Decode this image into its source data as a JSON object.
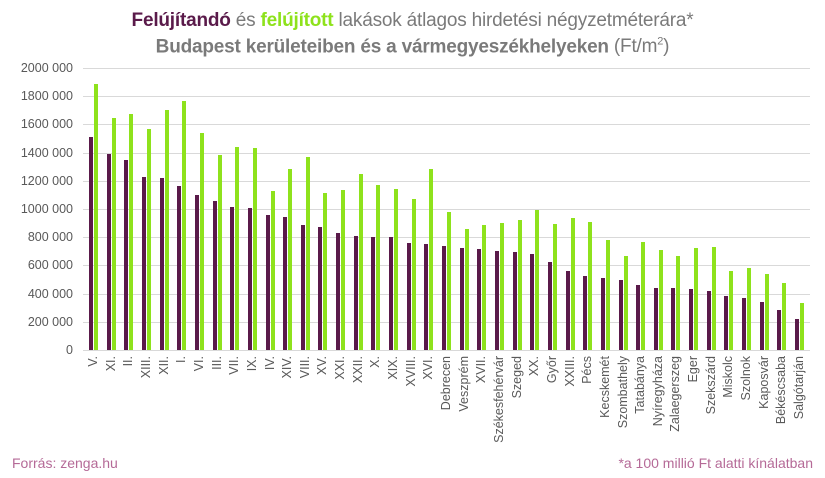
{
  "title": {
    "line1_part1": "Felújítandó",
    "line1_part2": " és ",
    "line1_part3": "felújított",
    "line1_part4": " lakások átlagos hirdetési négyzetméterára*",
    "line2_part1": "Budapest kerületeiben és a vármegyeszékhelyeken ",
    "line2_unit": "(Ft/m",
    "line2_unit_sup": "2",
    "line2_unit_end": ")"
  },
  "footer": {
    "source": "Forrás: zenga.hu",
    "note": "*a 100 millió Ft alatti kínálatban"
  },
  "colors": {
    "felujitando": "#5a1a4a",
    "felujitott": "#8ee21c",
    "grid": "#d9d9d9",
    "footer": "#b56a97"
  },
  "chart_data": {
    "type": "bar",
    "title": "Felújítandó és felújított lakások átlagos hirdetési négyzetméterára* Budapest kerületeiben és a vármegyeszékhelyeken (Ft/m2)",
    "xlabel": "",
    "ylabel": "",
    "ylim": [
      0,
      2000000
    ],
    "yticks": [
      "0",
      "200 000",
      "400 000",
      "600 000",
      "800 000",
      "1000 000",
      "1200 000",
      "1400 000",
      "1600 000",
      "1800 000",
      "2000 000"
    ],
    "grid": true,
    "legend": "in title (colored words)",
    "categories": [
      "V.",
      "XI.",
      "II.",
      "XIII.",
      "XII.",
      "I.",
      "VI.",
      "III.",
      "VII.",
      "IX.",
      "IV.",
      "XIV.",
      "VIII.",
      "XV.",
      "XXI.",
      "XXII.",
      "X.",
      "XIX.",
      "XVIII.",
      "XVI.",
      "Debrecen",
      "Veszprém",
      "XVII.",
      "Székesfehérvár",
      "Szeged",
      "XX.",
      "Győr",
      "XXIII.",
      "Pécs",
      "Kecskemét",
      "Szombathely",
      "Tatabánya",
      "Nyíregyháza",
      "Zalaegerszeg",
      "Eger",
      "Szekszárd",
      "Miskolc",
      "Szolnok",
      "Kaposvár",
      "Békéscsaba",
      "Salgótarján"
    ],
    "series": [
      {
        "name": "Felújítandó",
        "color": "#5a1a4a",
        "values": [
          1510000,
          1390000,
          1350000,
          1230000,
          1220000,
          1165000,
          1100000,
          1055000,
          1015000,
          1005000,
          960000,
          940000,
          890000,
          875000,
          830000,
          810000,
          800000,
          800000,
          760000,
          750000,
          735000,
          720000,
          715000,
          700000,
          695000,
          680000,
          625000,
          560000,
          525000,
          510000,
          495000,
          460000,
          440000,
          440000,
          435000,
          420000,
          385000,
          370000,
          340000,
          285000,
          220000
        ]
      },
      {
        "name": "Felújított",
        "color": "#8ee21c",
        "values": [
          1890000,
          1645000,
          1675000,
          1565000,
          1700000,
          1765000,
          1540000,
          1385000,
          1440000,
          1435000,
          1130000,
          1285000,
          1370000,
          1110000,
          1135000,
          1250000,
          1170000,
          1140000,
          1070000,
          1285000,
          980000,
          860000,
          890000,
          900000,
          920000,
          990000,
          895000,
          935000,
          905000,
          780000,
          665000,
          765000,
          710000,
          670000,
          725000,
          730000,
          560000,
          585000,
          540000,
          475000,
          335000
        ]
      }
    ]
  }
}
